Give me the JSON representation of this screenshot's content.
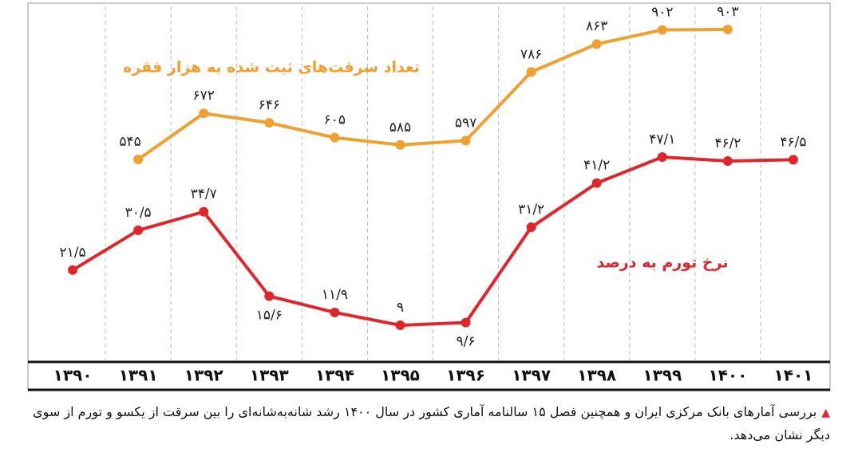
{
  "chart_data": {
    "type": "line",
    "categories": [
      "۱۳۹۰",
      "۱۳۹۱",
      "۱۳۹۲",
      "۱۳۹۳",
      "۱۳۹۴",
      "۱۳۹۵",
      "۱۳۹۶",
      "۱۳۹۷",
      "۱۳۹۸",
      "۱۳۹۹",
      "۱۴۰۰",
      "۱۴۰۱"
    ],
    "series": [
      {
        "name": "تعداد سرقت‌های ثبت شده به هزار فقره",
        "color": "#f0a030",
        "values": [
          null,
          545,
          672,
          646,
          605,
          585,
          597,
          786,
          863,
          902,
          903,
          null
        ],
        "value_labels": [
          null,
          "۵۴۵",
          "۶۷۲",
          "۶۴۶",
          "۶۰۵",
          "۵۸۵",
          "۵۹۷",
          "۷۸۶",
          "۸۶۳",
          "۹۰۲",
          "۹۰۳",
          null
        ]
      },
      {
        "name": "نرخ تورم به درصد",
        "color": "#e0262b",
        "values": [
          21.5,
          30.5,
          34.7,
          15.6,
          11.9,
          9,
          9.6,
          31.2,
          41.2,
          47.1,
          46.2,
          46.5
        ],
        "value_labels": [
          "۲۱/۵",
          "۳۰/۵",
          "۳۴/۷",
          "۱۵/۶",
          "۱۱/۹",
          "۹",
          "۹/۶",
          "۳۱/۲",
          "۴۱/۲",
          "۴۷/۱",
          "۴۶/۲",
          "۴۶/۵"
        ]
      }
    ]
  },
  "caption": "بررسی آمارهای بانک مرکزی ایران و همچنین فصل ۱۵ سالنامه آماری کشور در سال ۱۴۰۰ رشد شانه‌به‌شانه‌ای را بین سرقت از یکسو و تورم از سوی دیگر نشان می‌دهد."
}
